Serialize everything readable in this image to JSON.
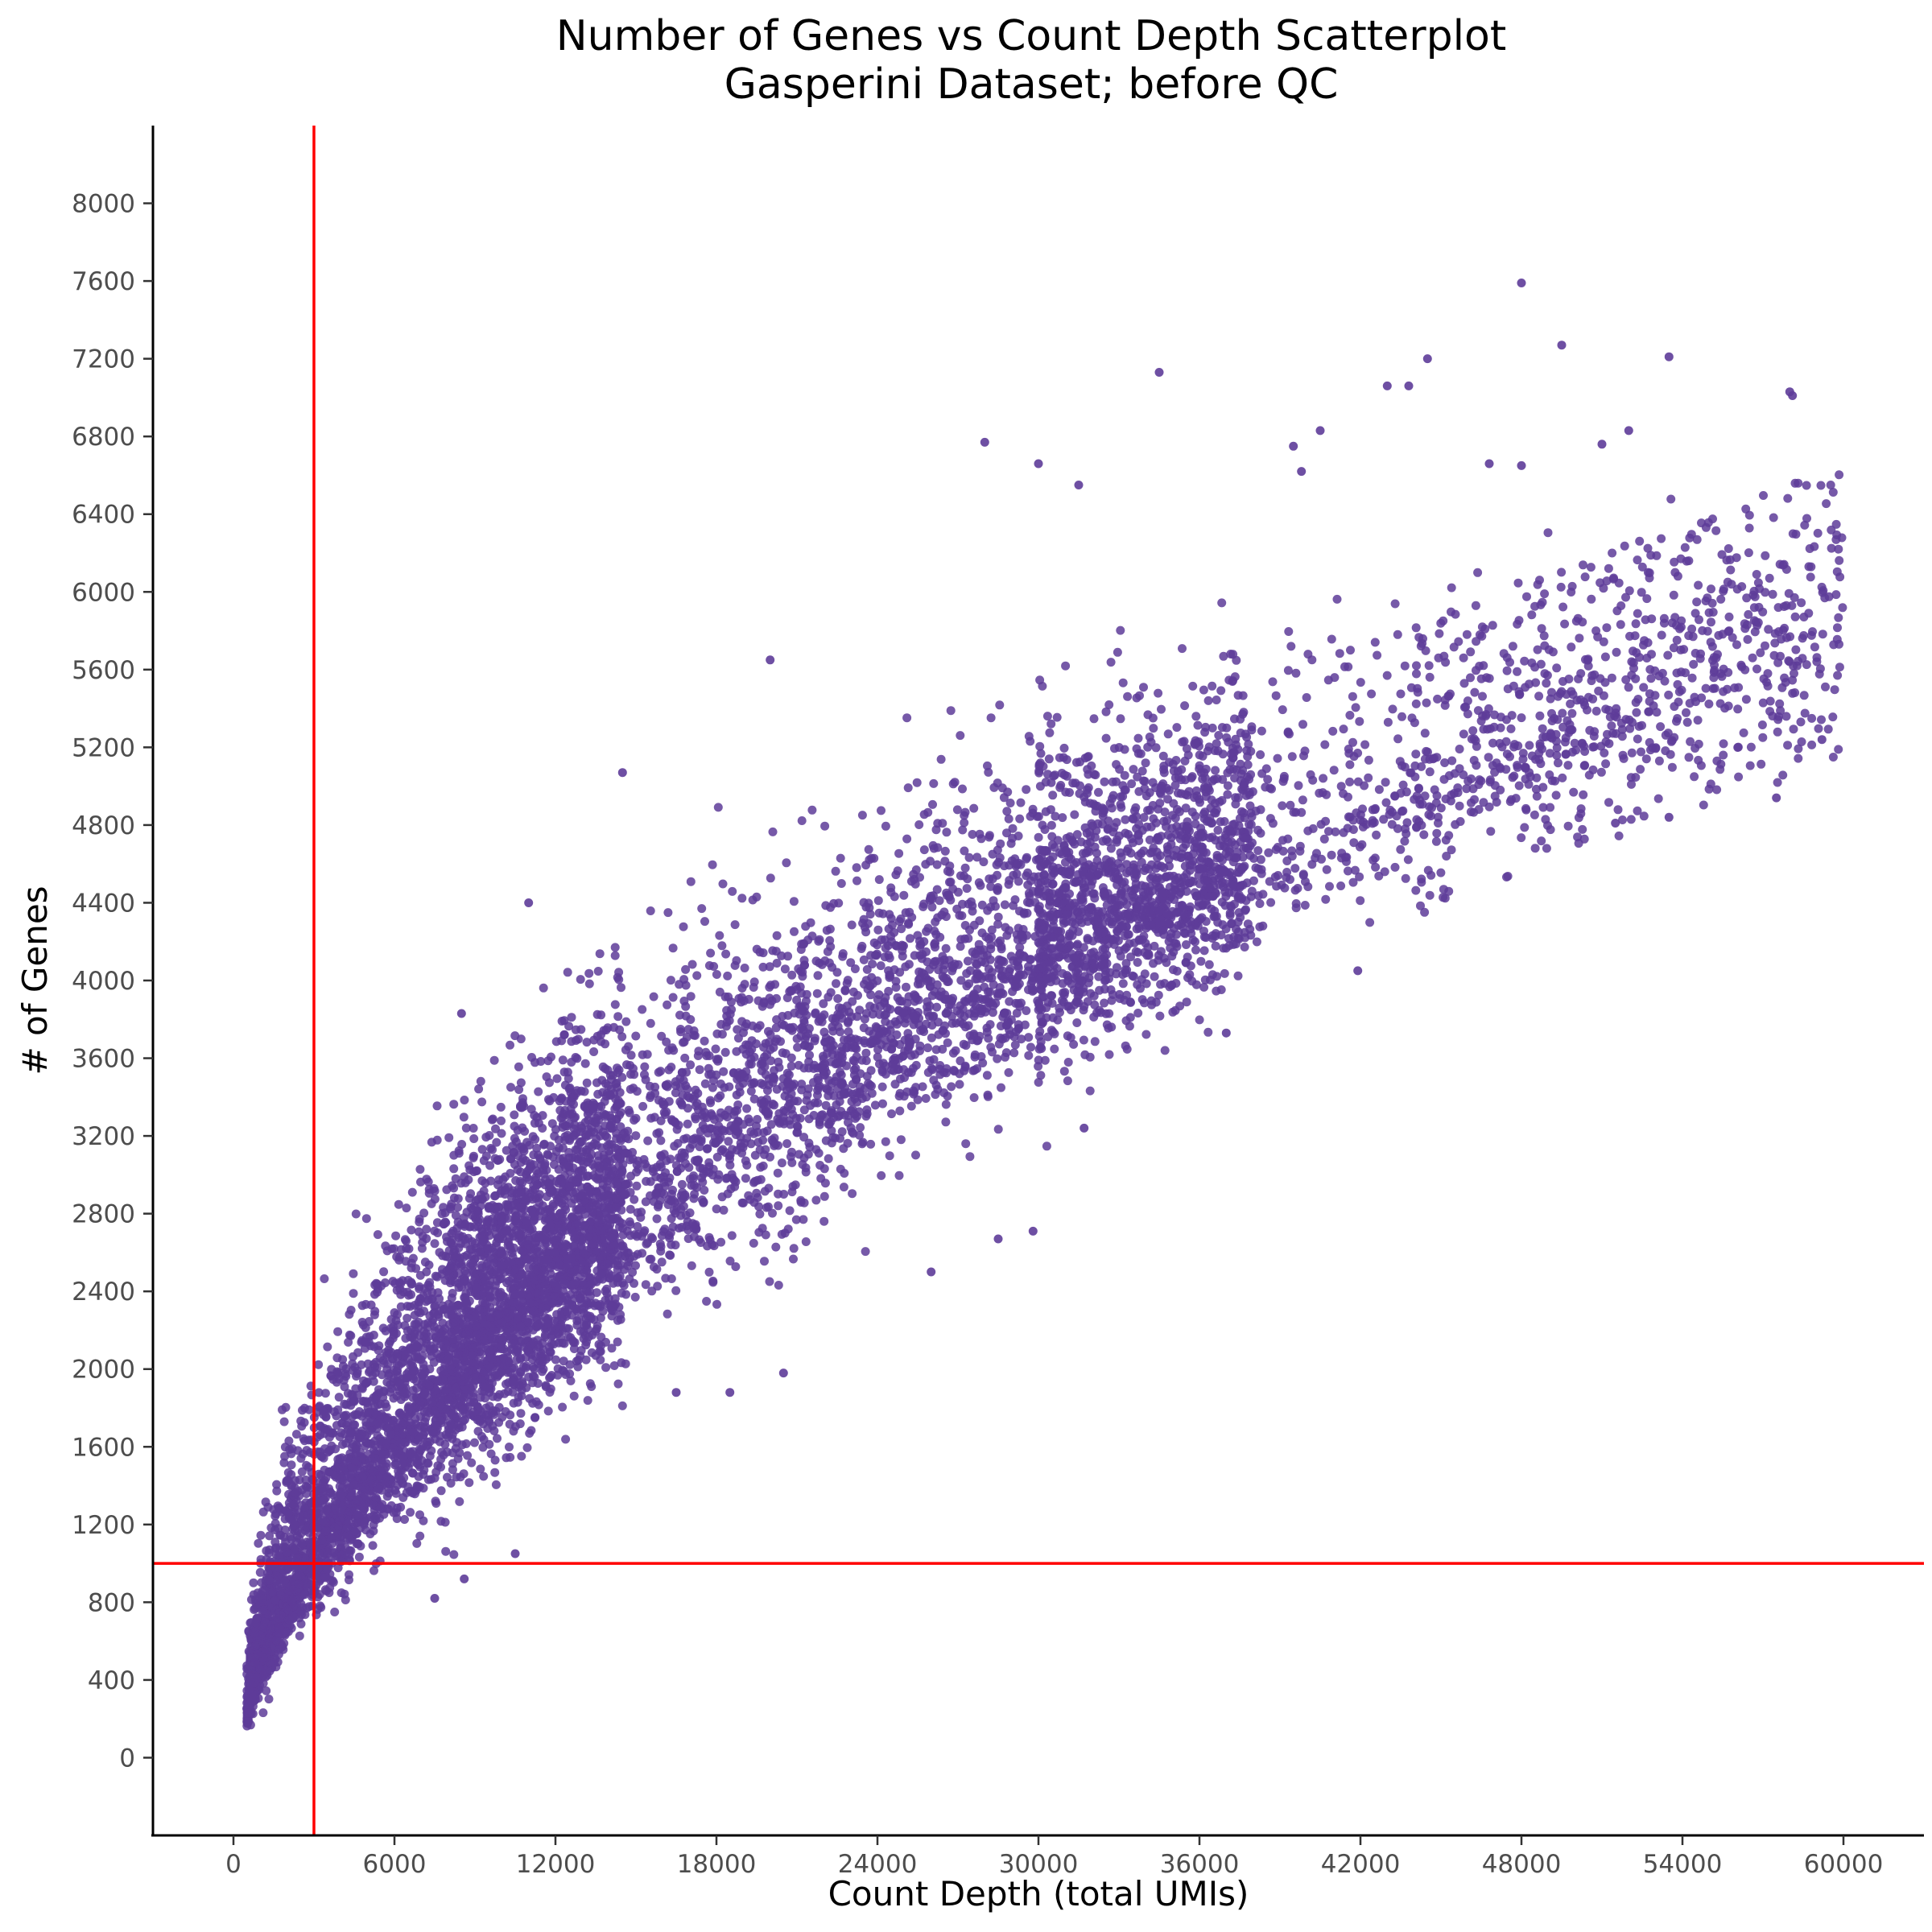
{
  "chart_data": {
    "type": "scatter",
    "title": "Number of Genes vs Count Depth Scatterplot",
    "subtitle": "Gasperini Dataset; before QC",
    "xlabel": "Count Depth (total UMIs)",
    "ylabel": "# of Genes",
    "xlim": [
      -3000,
      63000
    ],
    "ylim": [
      -400,
      8400
    ],
    "xticks": [
      0,
      6000,
      12000,
      18000,
      24000,
      30000,
      36000,
      42000,
      48000,
      54000,
      60000
    ],
    "yticks": [
      0,
      400,
      800,
      1200,
      1600,
      2000,
      2400,
      2800,
      3200,
      3600,
      4000,
      4400,
      4800,
      5200,
      5600,
      6000,
      6400,
      6800,
      7200,
      7600,
      8000
    ],
    "grid": false,
    "point_color": "#5e3c99",
    "reference_lines": [
      {
        "orientation": "vertical",
        "x": 3000,
        "color": "#ff0000"
      },
      {
        "orientation": "horizontal",
        "y": 1000,
        "color": "#ff0000"
      }
    ],
    "trend": {
      "description": "dense band of cells; genes rise steeply at low depth then level off",
      "x": [
        500,
        1000,
        2000,
        3000,
        4000,
        6000,
        8000,
        10000,
        12000,
        15000,
        18000,
        21000,
        24000,
        27000,
        30000,
        33000,
        36000,
        39000,
        42000,
        45000,
        48000,
        51000,
        54000,
        57000,
        60000
      ],
      "y": [
        250,
        520,
        860,
        1100,
        1330,
        1720,
        2050,
        2340,
        2600,
        2950,
        3250,
        3520,
        3770,
        4000,
        4200,
        4400,
        4570,
        4730,
        4880,
        5050,
        5230,
        5380,
        5530,
        5680,
        5820
      ],
      "spread_low": [
        150,
        320,
        560,
        720,
        880,
        1150,
        1380,
        1600,
        1800,
        2100,
        2400,
        2650,
        2950,
        3200,
        3450,
        3700,
        3900,
        4150,
        4350,
        4600,
        4800,
        4900,
        4950,
        5000,
        5100
      ],
      "spread_high": [
        600,
        1200,
        1700,
        2000,
        2300,
        2800,
        3150,
        3500,
        3800,
        4150,
        4450,
        4700,
        4950,
        5150,
        5300,
        5450,
        5600,
        5750,
        5900,
        6050,
        6150,
        6250,
        6300,
        6350,
        6400
      ]
    },
    "outliers": [
      {
        "x": 48000,
        "y": 7590
      },
      {
        "x": 49500,
        "y": 7270
      },
      {
        "x": 53500,
        "y": 7210
      },
      {
        "x": 44500,
        "y": 7200
      },
      {
        "x": 34500,
        "y": 7130
      },
      {
        "x": 43000,
        "y": 7060
      },
      {
        "x": 43800,
        "y": 7060
      },
      {
        "x": 58000,
        "y": 7030
      },
      {
        "x": 58100,
        "y": 7010
      },
      {
        "x": 40500,
        "y": 6830
      },
      {
        "x": 52000,
        "y": 6830
      },
      {
        "x": 28000,
        "y": 6770
      },
      {
        "x": 39500,
        "y": 6750
      },
      {
        "x": 51000,
        "y": 6760
      },
      {
        "x": 30000,
        "y": 6660
      },
      {
        "x": 46800,
        "y": 6660
      },
      {
        "x": 48000,
        "y": 6650
      },
      {
        "x": 39800,
        "y": 6620
      },
      {
        "x": 31500,
        "y": 6550
      },
      {
        "x": 20000,
        "y": 5650
      },
      {
        "x": 14500,
        "y": 5070
      },
      {
        "x": 11000,
        "y": 4400
      },
      {
        "x": 8500,
        "y": 3830
      },
      {
        "x": 29800,
        "y": 2710
      },
      {
        "x": 28500,
        "y": 2670
      },
      {
        "x": 26000,
        "y": 2500
      },
      {
        "x": 41900,
        "y": 4050
      },
      {
        "x": 31700,
        "y": 3240
      },
      {
        "x": 37000,
        "y": 3730
      },
      {
        "x": 20500,
        "y": 1980
      },
      {
        "x": 18500,
        "y": 1880
      },
      {
        "x": 16500,
        "y": 1880
      },
      {
        "x": 10500,
        "y": 1050
      },
      {
        "x": 8600,
        "y": 920
      },
      {
        "x": 7500,
        "y": 820
      },
      {
        "x": 57500,
        "y": 4940
      },
      {
        "x": 59200,
        "y": 5240
      },
      {
        "x": 53500,
        "y": 4840
      },
      {
        "x": 51500,
        "y": 4810
      }
    ]
  }
}
